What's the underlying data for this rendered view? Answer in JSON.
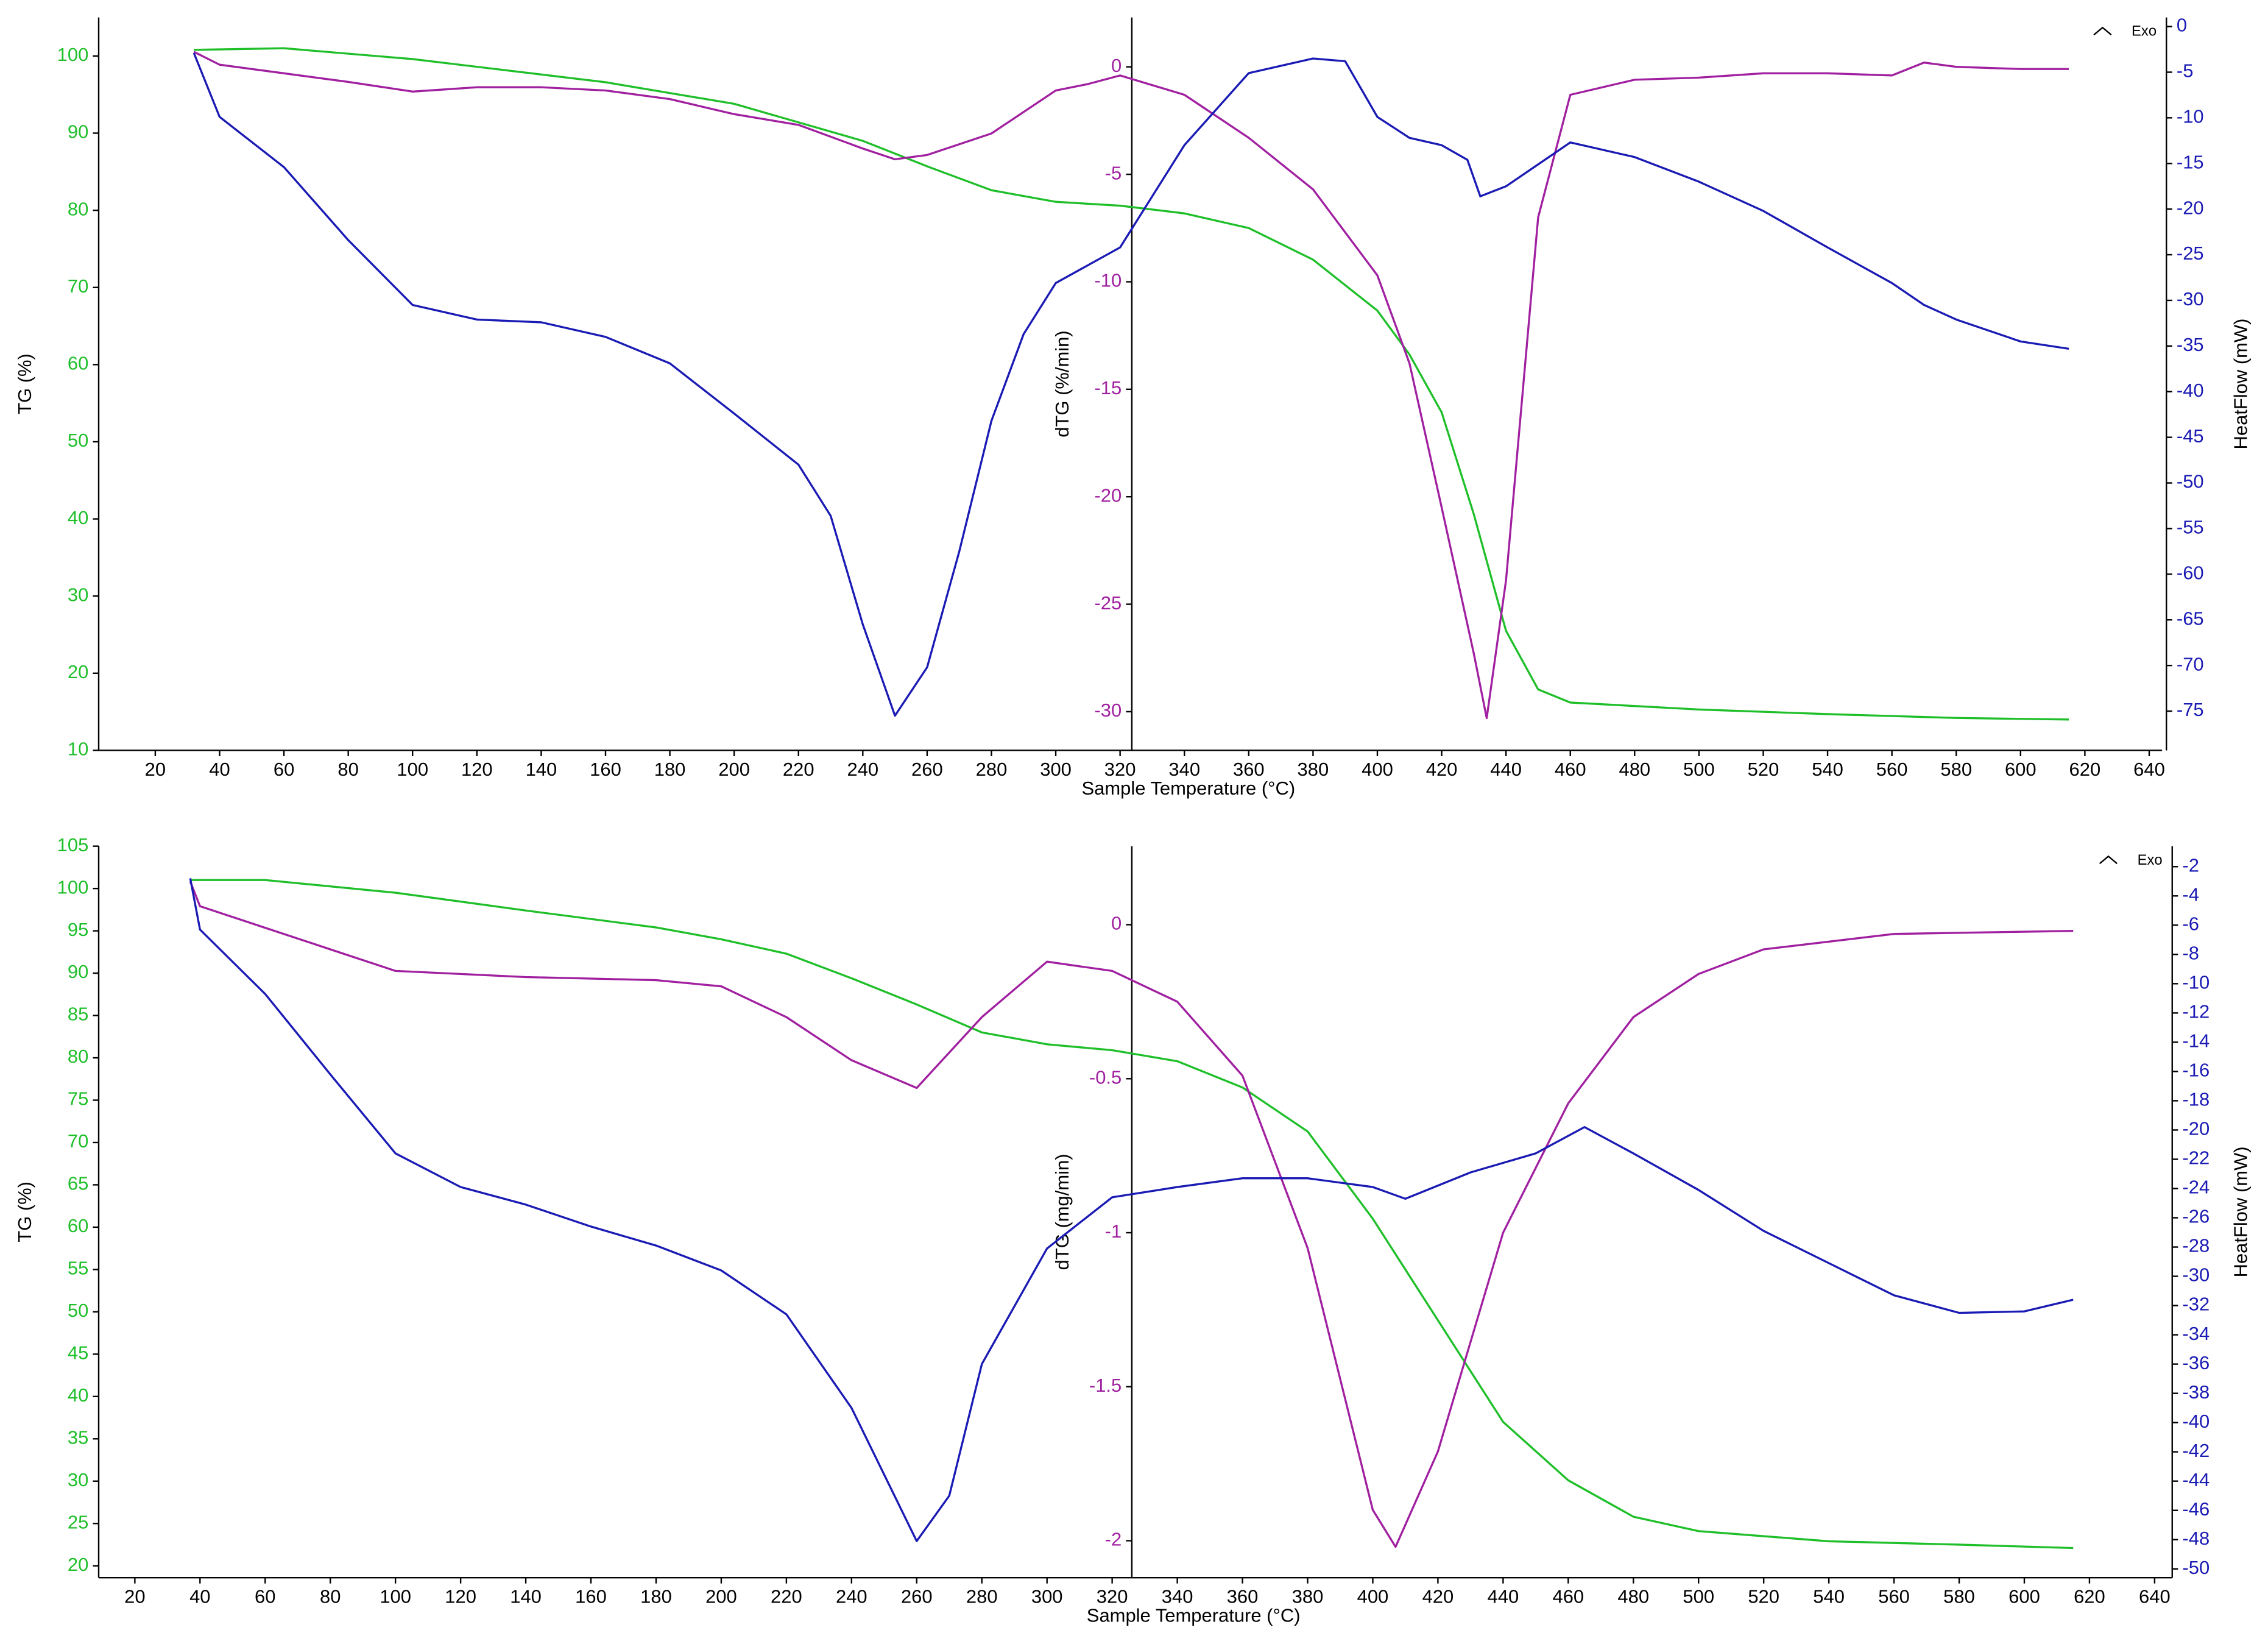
{
  "chart_data": [
    {
      "type": "line",
      "xlabel": "Sample Temperature (°C)",
      "ylabel": "TG (%)",
      "y2label": "dTG (%/min)",
      "y3label": "HeatFlow (mW)",
      "annotation": "Exo",
      "xlim": [
        2.4,
        644
      ],
      "xticks": [
        20,
        40,
        60,
        80,
        100,
        120,
        140,
        160,
        180,
        200,
        220,
        240,
        260,
        280,
        300,
        320,
        340,
        360,
        380,
        400,
        420,
        440,
        460,
        480,
        500,
        520,
        540,
        560,
        580,
        600,
        620,
        640
      ],
      "ylim": [
        10,
        105
      ],
      "yticks": [
        10,
        20,
        30,
        40,
        50,
        60,
        70,
        80,
        90,
        100
      ],
      "y2lim": [
        -31.8,
        2.3
      ],
      "y2ticks": [
        0,
        -5,
        -10,
        -15,
        -20,
        -25,
        -30
      ],
      "y3lim": [
        -79.3,
        1
      ],
      "y3ticks": [
        0,
        -5,
        -10,
        -15,
        -20,
        -25,
        -30,
        -35,
        -40,
        -45,
        -50,
        -55,
        -60,
        -65,
        -70,
        -75
      ],
      "series": [
        {
          "color": "#1fbf2a",
          "axis": "y",
          "x": [
            32,
            60,
            100,
            160,
            200,
            240,
            260,
            280,
            300,
            320,
            340,
            360,
            380,
            400,
            410,
            420,
            430,
            440,
            450,
            460,
            500,
            540,
            580,
            615
          ],
          "values": [
            100.8,
            101,
            99.6,
            96.6,
            93.8,
            89,
            85.7,
            82.6,
            81.1,
            80.6,
            79.6,
            77.7,
            73.6,
            67,
            61.3,
            53.8,
            40.6,
            25.5,
            17.9,
            16.2,
            15.3,
            14.7,
            14.2,
            14
          ]
        },
        {
          "color": "#a020a0",
          "axis": "y2",
          "x": [
            32,
            40,
            60,
            80,
            100,
            120,
            140,
            160,
            180,
            200,
            220,
            240,
            250,
            260,
            280,
            300,
            310,
            320,
            340,
            360,
            370,
            380,
            400,
            410,
            420,
            430,
            434,
            440,
            450,
            460,
            480,
            500,
            520,
            540,
            560,
            570,
            580,
            600,
            615
          ],
          "values": [
            0.7,
            0.1,
            -0.3,
            -0.7,
            -1.15,
            -0.95,
            -0.95,
            -1.1,
            -1.5,
            -2.2,
            -2.7,
            -3.8,
            -4.3,
            -4.1,
            -3.1,
            -1.1,
            -0.8,
            -0.4,
            -1.3,
            -3.3,
            -4.5,
            -5.7,
            -9.7,
            -13.8,
            -20.5,
            -27.3,
            -30.3,
            -23.9,
            -7,
            -1.3,
            -0.6,
            -0.5,
            -0.3,
            -0.3,
            -0.4,
            0.2,
            0,
            -0.1,
            -0.1
          ]
        },
        {
          "color": "#1a1ab4",
          "axis": "y3",
          "x": [
            32,
            40,
            60,
            80,
            100,
            120,
            140,
            160,
            180,
            200,
            220,
            230,
            240,
            250,
            260,
            270,
            280,
            290,
            300,
            320,
            340,
            360,
            380,
            390,
            400,
            410,
            420,
            428,
            432,
            440,
            460,
            480,
            500,
            520,
            540,
            560,
            570,
            580,
            600,
            615
          ],
          "values": [
            -2.9,
            -9.9,
            -15.4,
            -23.4,
            -30.5,
            -32.1,
            -32.4,
            -34,
            -36.9,
            -42.4,
            -48,
            -53.6,
            -65.5,
            -75.5,
            -70.2,
            -57.5,
            -43.2,
            -33.7,
            -28.1,
            -24.2,
            -13,
            -5.1,
            -3.5,
            -3.8,
            -9.9,
            -12.2,
            -13,
            -14.6,
            -18.6,
            -17.5,
            -12.7,
            -14.3,
            -17,
            -20.2,
            -24.2,
            -28.1,
            -30.5,
            -32.1,
            -34.5,
            -35.3
          ]
        }
      ]
    },
    {
      "type": "line",
      "xlabel": "Sample Temperature (°C)",
      "ylabel": "TG (%)",
      "y2label": "dTG (mg/min)",
      "y3label": "HeatFlow (mW)",
      "annotation": "Exo",
      "xlim": [
        8.9,
        645.4
      ],
      "xticks": [
        20,
        40,
        60,
        80,
        100,
        120,
        140,
        160,
        180,
        200,
        220,
        240,
        260,
        280,
        300,
        320,
        340,
        360,
        380,
        400,
        420,
        440,
        460,
        480,
        500,
        520,
        540,
        560,
        580,
        600,
        620,
        640
      ],
      "ylim": [
        18.6,
        105
      ],
      "yticks": [
        20,
        25,
        30,
        35,
        40,
        45,
        50,
        55,
        60,
        65,
        70,
        75,
        80,
        85,
        90,
        95,
        100,
        105
      ],
      "y2lim": [
        -2.12,
        0.255
      ],
      "y2ticks": [
        0,
        -0.5,
        -1,
        -1.5,
        -2
      ],
      "y3lim": [
        -50.6,
        -0.6
      ],
      "y3ticks": [
        -2,
        -4,
        -6,
        -8,
        -10,
        -12,
        -14,
        -16,
        -18,
        -20,
        -22,
        -24,
        -26,
        -28,
        -30,
        -32,
        -34,
        -36,
        -38,
        -40,
        -42,
        -44,
        -46,
        -48,
        -50
      ],
      "series": [
        {
          "color": "#1fbf2a",
          "axis": "y",
          "x": [
            37,
            60,
            100,
            140,
            180,
            200,
            220,
            240,
            260,
            280,
            300,
            320,
            340,
            360,
            380,
            400,
            420,
            440,
            460,
            480,
            500,
            540,
            580,
            615
          ],
          "values": [
            101,
            101,
            99.5,
            97.4,
            95.4,
            94,
            92.3,
            89.4,
            86.3,
            83,
            81.6,
            80.9,
            79.6,
            76.5,
            71.3,
            61,
            49,
            37,
            30.1,
            25.8,
            24.1,
            22.9,
            22.5,
            22.1
          ]
        },
        {
          "color": "#a020a0",
          "axis": "y2",
          "x": [
            37,
            40,
            60,
            80,
            100,
            140,
            180,
            200,
            220,
            240,
            260,
            280,
            300,
            320,
            340,
            360,
            380,
            400,
            407,
            420,
            440,
            460,
            480,
            500,
            520,
            560,
            615
          ],
          "values": [
            0.14,
            0.06,
            -0.01,
            -0.08,
            -0.15,
            -0.17,
            -0.18,
            -0.2,
            -0.3,
            -0.44,
            -0.53,
            -0.3,
            -0.12,
            -0.15,
            -0.25,
            -0.49,
            -1.05,
            -1.9,
            -2.02,
            -1.71,
            -1,
            -0.58,
            -0.3,
            -0.16,
            -0.08,
            -0.03,
            -0.02
          ]
        },
        {
          "color": "#1a1ab4",
          "axis": "y3",
          "x": [
            37,
            40,
            60,
            80,
            100,
            120,
            140,
            160,
            180,
            200,
            220,
            240,
            260,
            270,
            280,
            300,
            320,
            340,
            360,
            380,
            400,
            410,
            430,
            450,
            465,
            480,
            500,
            520,
            540,
            560,
            580,
            600,
            615
          ],
          "values": [
            -2.8,
            -6.3,
            -10.7,
            -16.2,
            -21.6,
            -23.9,
            -25.1,
            -26.6,
            -27.9,
            -29.6,
            -32.6,
            -39,
            -48.1,
            -45,
            -36,
            -28.1,
            -24.6,
            -23.9,
            -23.3,
            -23.3,
            -23.9,
            -24.7,
            -22.9,
            -21.6,
            -19.8,
            -21.6,
            -24.1,
            -26.9,
            -29.1,
            -31.3,
            -32.5,
            -32.4,
            -31.6
          ]
        }
      ]
    }
  ]
}
